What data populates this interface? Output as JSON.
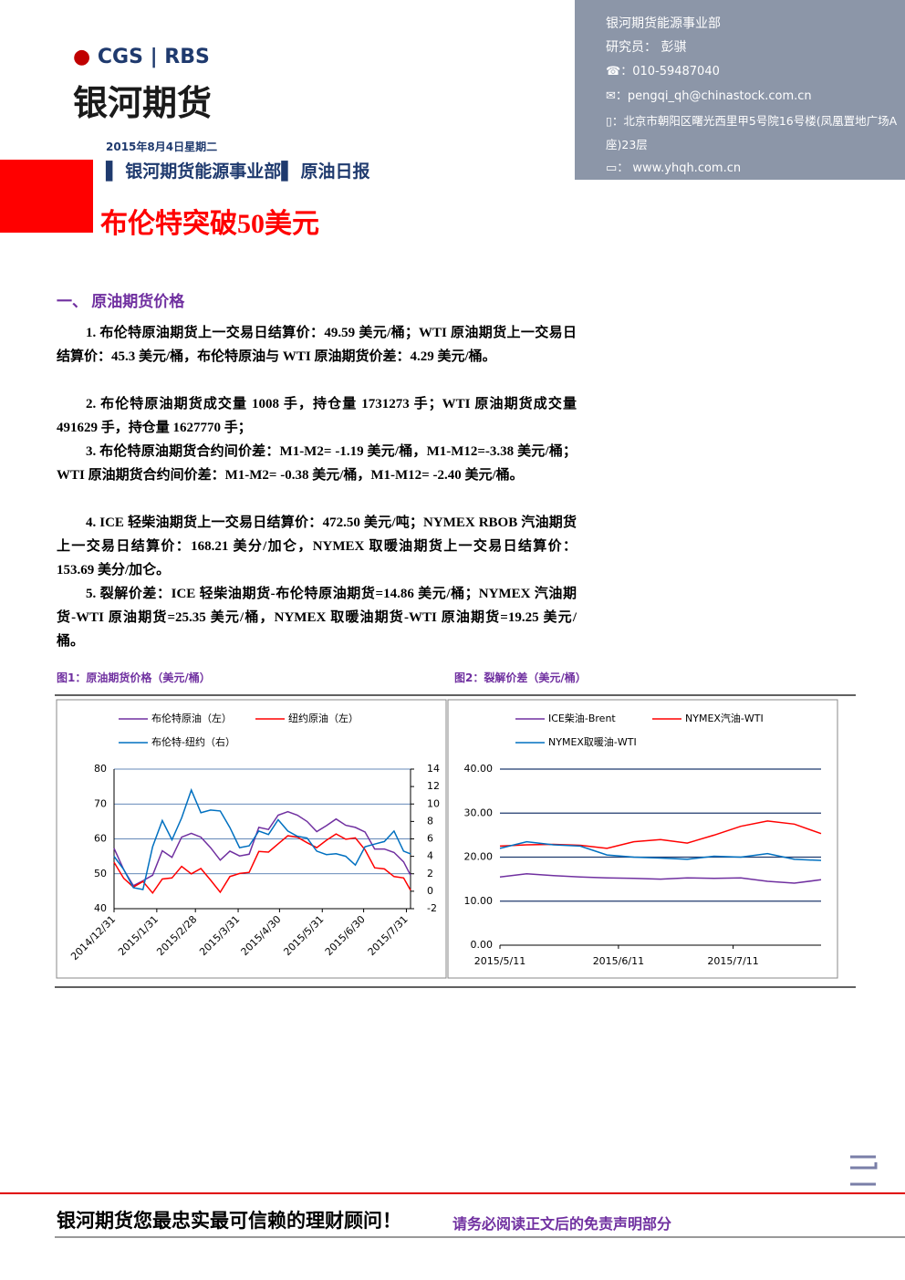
{
  "header": {
    "logo": {
      "brand_a": "CGS",
      "brand_b": "RBS",
      "name": "银河期货"
    },
    "contact": {
      "department": "银河期货能源事业部",
      "researcher": "研究员： 彭骐",
      "phone": "010-59487040",
      "email": "pengqi_qh@chinastock.com.cn",
      "address": "北京市朝阳区曙光西里甲5号院16号楼(凤凰置地广场A座)23层",
      "website": "www.yhqh.com.cn"
    },
    "date": "2015年8月4日星期二",
    "department": "银河期货能源事业部",
    "report": "原油日报",
    "title": "布伦特突破50美元"
  },
  "section": "一、 原油期货价格",
  "paragraphs": [
    "1. 布伦特原油期货上一交易日结算价：49.59 美元/桶；WTI 原油期货上一交易日结算价：45.3 美元/桶，布伦特原油与 WTI 原油期货价差：4.29 美元/桶。",
    "2. 布伦特原油期货成交量 1008 手，持仓量 1731273 手；WTI 原油期货成交量 491629 手，持仓量 1627770 手；",
    "3. 布伦特原油期货合约间价差：M1-M2= -1.19 美元/桶，M1-M12=-3.38 美元/桶；WTI 原油期货合约间价差：M1-M2= -0.38 美元/桶，M1-M12= -2.40 美元/桶。",
    "4. ICE 轻柴油期货上一交易日结算价：472.50 美元/吨；NYMEX RBOB 汽油期货上一交易日结算价：168.21 美分/加仑，NYMEX 取暖油期货上一交易日结算价：153.69 美分/加仑。",
    "5. 裂解价差：ICE 轻柴油期货-布伦特原油期货=14.86 美元/桶；NYMEX 汽油期货-WTI 原油期货=25.35 美元/桶，NYMEX 取暖油期货-WTI 原油期货=19.25 美元/桶。"
  ],
  "chart_data": [
    {
      "type": "line",
      "title": "图1：原油期货价格（美元/桶）",
      "x": [
        "2014/12/31",
        "2015/1/7",
        "2015/1/14",
        "2015/1/21",
        "2015/1/28",
        "2015/2/4",
        "2015/2/11",
        "2015/2/18",
        "2015/2/25",
        "2015/3/4",
        "2015/3/11",
        "2015/3/18",
        "2015/3/25",
        "2015/4/1",
        "2015/4/8",
        "2015/4/15",
        "2015/4/22",
        "2015/4/29",
        "2015/5/6",
        "2015/5/13",
        "2015/5/20",
        "2015/5/27",
        "2015/6/3",
        "2015/6/10",
        "2015/6/17",
        "2015/6/24",
        "2015/7/1",
        "2015/7/8",
        "2015/7/15",
        "2015/7/22",
        "2015/7/29",
        "2015/8/3"
      ],
      "xticks": [
        "2014/12/31",
        "2015/1/31",
        "2015/2/28",
        "2015/3/31",
        "2015/4/30",
        "2015/5/31",
        "2015/6/30",
        "2015/7/31"
      ],
      "ylim": [
        40,
        80
      ],
      "yticks": [
        40,
        50,
        60,
        70,
        80
      ],
      "y2lim": [
        -2,
        14
      ],
      "y2ticks": [
        -2,
        0,
        2,
        4,
        6,
        8,
        10,
        12,
        14
      ],
      "grid": true,
      "series": [
        {
          "name": "布伦特原油（左）",
          "color": "#7030a0",
          "values": [
            57.3,
            51.2,
            46.6,
            48.0,
            49.6,
            56.6,
            54.7,
            60.5,
            61.6,
            60.5,
            57.5,
            53.9,
            56.5,
            55.1,
            55.6,
            63.3,
            62.7,
            66.8,
            67.8,
            66.8,
            65.0,
            62.1,
            63.8,
            65.7,
            63.9,
            63.3,
            62.0,
            57.1,
            57.1,
            56.1,
            53.4,
            49.59
          ]
        },
        {
          "name": "纽约原油（左）",
          "color": "#ff0000",
          "values": [
            53.3,
            48.7,
            46.2,
            47.8,
            44.5,
            48.5,
            48.8,
            52.1,
            50.0,
            51.5,
            48.2,
            44.7,
            49.2,
            50.1,
            50.4,
            56.4,
            56.2,
            58.6,
            60.9,
            60.5,
            58.9,
            57.5,
            59.6,
            61.4,
            59.9,
            60.3,
            56.9,
            51.7,
            51.4,
            49.2,
            48.8,
            45.3
          ]
        },
        {
          "name": "布伦特-纽约（右）",
          "color": "#0070c0",
          "axis": "y2",
          "values": [
            4.0,
            2.5,
            0.4,
            0.2,
            5.1,
            8.1,
            5.9,
            8.4,
            11.6,
            9.0,
            9.3,
            9.2,
            7.3,
            5.0,
            5.2,
            6.9,
            6.5,
            8.2,
            6.9,
            6.3,
            6.1,
            4.6,
            4.2,
            4.3,
            4.0,
            3.0,
            5.1,
            5.4,
            5.7,
            6.9,
            4.6,
            4.29
          ]
        }
      ]
    },
    {
      "type": "line",
      "title": "图2：裂解价差（美元/桶）",
      "x": [
        "2015/5/11",
        "2015/5/18",
        "2015/5/25",
        "2015/6/1",
        "2015/6/8",
        "2015/6/15",
        "2015/6/22",
        "2015/6/29",
        "2015/7/6",
        "2015/7/13",
        "2015/7/20",
        "2015/7/27",
        "2015/8/3"
      ],
      "xticks": [
        "2015/5/11",
        "2015/6/11",
        "2015/7/11"
      ],
      "ylim": [
        0,
        40
      ],
      "yticks": [
        {
          "value": 0,
          "label": "0.00"
        },
        {
          "value": 10,
          "label": "10.00"
        },
        {
          "value": 20,
          "label": "20.00"
        },
        {
          "value": 30,
          "label": "30.00"
        },
        {
          "value": 40,
          "label": "40.00"
        }
      ],
      "grid": true,
      "series": [
        {
          "name": "ICE柴油-Brent",
          "color": "#7030a0",
          "values": [
            15.5,
            16.2,
            15.8,
            15.5,
            15.3,
            15.2,
            15.0,
            15.3,
            15.2,
            15.3,
            14.5,
            14.1,
            14.86
          ]
        },
        {
          "name": "NYMEX汽油-WTI",
          "color": "#ff0000",
          "values": [
            22.5,
            22.8,
            22.9,
            22.7,
            22.0,
            23.5,
            24.0,
            23.2,
            25.0,
            27.0,
            28.2,
            27.5,
            25.35
          ]
        },
        {
          "name": "NYMEX取暖油-WTI",
          "color": "#0070c0",
          "values": [
            22.0,
            23.5,
            22.8,
            22.5,
            20.5,
            20.0,
            19.8,
            19.5,
            20.2,
            20.0,
            20.8,
            19.5,
            19.25
          ]
        }
      ]
    }
  ],
  "footer": {
    "slogan": "银河期货您最忠实最可信赖的理财顾问！",
    "disclaimer": "请务必阅读正文后的免责声明部分"
  }
}
